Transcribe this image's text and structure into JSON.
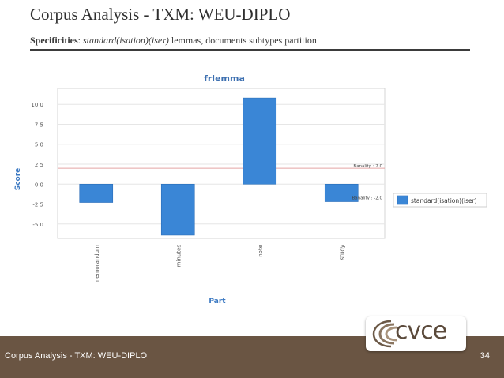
{
  "slide": {
    "title": "Corpus Analysis - TXM: WEU-DIPLO",
    "subtitle_bold": "Specificities",
    "subtitle_sep": ": ",
    "subtitle_italic": "standard(isation)(iser)",
    "subtitle_rest": " lemmas, documents subtypes partition",
    "footer": "Corpus Analysis - TXM: WEU-DIPLO",
    "page_number": "34",
    "logo_text": "cvce"
  },
  "colors": {
    "bar": "#3a86d6",
    "bar_stroke": "#2a6db8",
    "banality_line": "#e4a5a5",
    "grid": "#e6e6e6",
    "footer": "#6a5543",
    "axis_label": "#3a78c2"
  },
  "chart_data": {
    "type": "bar",
    "title": "frlemma",
    "xlabel": "Part",
    "ylabel": "Score",
    "categories": [
      "memorandum",
      "minutes",
      "note",
      "study"
    ],
    "series": [
      {
        "name": "standard(isation)(iser)",
        "values": [
          -2.3,
          -6.4,
          10.8,
          -2.2
        ]
      }
    ],
    "ylim": [
      -6.8,
      12.0
    ],
    "yticks": [
      -5.0,
      -2.5,
      0.0,
      2.5,
      5.0,
      7.5,
      10.0
    ],
    "ytick_labels": [
      "-5.0",
      "-2.5",
      "0.0",
      "2.5",
      "5.0",
      "7.5",
      "10.0"
    ],
    "banality_lines": [
      {
        "value": 2.0,
        "label": "Banality : 2.0"
      },
      {
        "value": -2.0,
        "label": "Banality : -2.0"
      }
    ],
    "grid": true,
    "legend": "right"
  }
}
